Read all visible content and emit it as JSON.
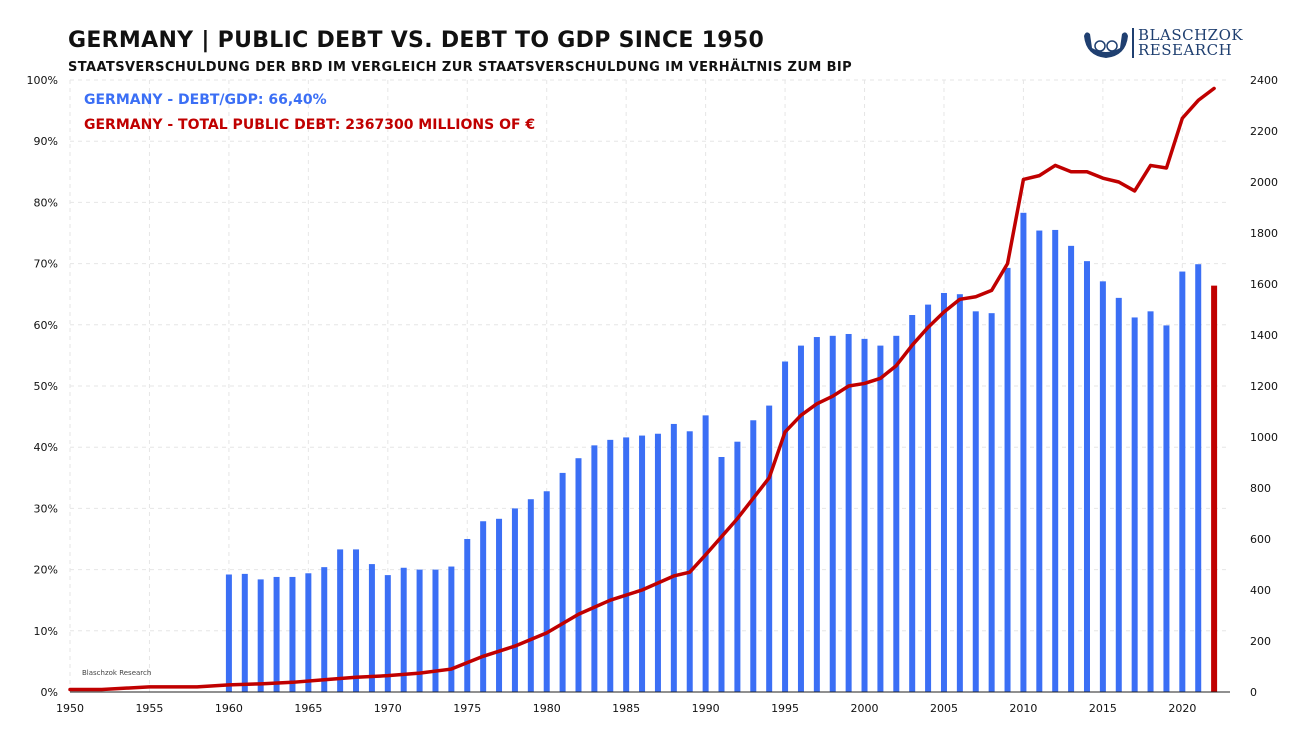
{
  "header": {
    "title": "GERMANY  |  PUBLIC DEBT VS. DEBT TO GDP SINCE 1950",
    "subtitle": "STAATSVERSCHULDUNG DER BRD IM VERGLEICH ZUR STAATSVERSCHULDUNG IM VERHÄLTNIS ZUM BIP"
  },
  "logo": {
    "line1": "BLASCHZOK",
    "line2": "RESEARCH"
  },
  "watermark": "Blaschzok  Research",
  "colors": {
    "bar": "#3b6ff5",
    "line": "#c00000",
    "last_bar": "#c00000",
    "grid": "#e6e6e6"
  },
  "chart_data": {
    "type": "bar",
    "legend": [
      "GERMANY - DEBT/GDP: 66,40%",
      "GERMANY - TOTAL  PUBLIC  DEBT: 2367300 MILLIONS  OF  €"
    ],
    "x_ticks": [
      1950,
      1955,
      1960,
      1965,
      1970,
      1975,
      1980,
      1985,
      1990,
      1995,
      2000,
      2005,
      2010,
      2015,
      2020
    ],
    "y_left_ticks": [
      "0%",
      "10%",
      "20%",
      "30%",
      "40%",
      "50%",
      "60%",
      "70%",
      "80%",
      "90%",
      "100%"
    ],
    "y_right_ticks": [
      "0",
      "200",
      "400",
      "600",
      "800",
      "1000",
      "1200",
      "1400",
      "1600",
      "1800",
      "2000",
      "2200",
      "2400"
    ],
    "ylim_left": [
      0,
      100
    ],
    "ylim_right": [
      0,
      2400
    ],
    "xlim": [
      1950,
      2023
    ],
    "grid": true,
    "series": [
      {
        "name": "GERMANY - DEBT/GDP",
        "axis": "left",
        "kind": "bar",
        "x": [
          1960,
          1961,
          1962,
          1963,
          1964,
          1965,
          1966,
          1967,
          1968,
          1969,
          1970,
          1971,
          1972,
          1973,
          1974,
          1975,
          1976,
          1977,
          1978,
          1979,
          1980,
          1981,
          1982,
          1983,
          1984,
          1985,
          1986,
          1987,
          1988,
          1989,
          1990,
          1991,
          1992,
          1993,
          1994,
          1995,
          1996,
          1997,
          1998,
          1999,
          2000,
          2001,
          2002,
          2003,
          2004,
          2005,
          2006,
          2007,
          2008,
          2009,
          2010,
          2011,
          2012,
          2013,
          2014,
          2015,
          2016,
          2017,
          2018,
          2019,
          2020,
          2021,
          2022
        ],
        "values": [
          19.2,
          19.3,
          18.4,
          18.8,
          18.8,
          19.4,
          20.4,
          23.3,
          23.3,
          20.9,
          19.1,
          20.3,
          20.0,
          20.0,
          20.5,
          25.0,
          27.9,
          28.3,
          30.0,
          31.5,
          32.8,
          35.8,
          38.2,
          40.3,
          41.2,
          41.6,
          41.9,
          42.2,
          43.8,
          42.6,
          45.2,
          38.4,
          40.9,
          44.4,
          46.8,
          54.0,
          56.6,
          58.0,
          58.2,
          58.5,
          57.7,
          56.6,
          58.2,
          61.6,
          63.3,
          65.2,
          65.0,
          62.2,
          61.9,
          69.3,
          78.3,
          75.4,
          75.5,
          72.9,
          70.4,
          67.1,
          64.4,
          61.2,
          62.2,
          59.9,
          68.7,
          69.9,
          66.4
        ]
      },
      {
        "name": "GERMANY - TOTAL PUBLIC DEBT",
        "axis": "right",
        "kind": "line",
        "x": [
          1950,
          1952,
          1955,
          1958,
          1960,
          1962,
          1964,
          1966,
          1968,
          1970,
          1972,
          1974,
          1976,
          1978,
          1980,
          1982,
          1984,
          1986,
          1988,
          1989,
          1990,
          1992,
          1993,
          1994,
          1995,
          1996,
          1997,
          1998,
          1999,
          2000,
          2001,
          2002,
          2003,
          2004,
          2005,
          2006,
          2007,
          2008,
          2009,
          2010,
          2011,
          2012,
          2013,
          2014,
          2015,
          2016,
          2017,
          2018,
          2019,
          2020,
          2021,
          2022
        ],
        "values": [
          10,
          10,
          20,
          20,
          28,
          32,
          38,
          48,
          58,
          64,
          74,
          90,
          140,
          180,
          232,
          305,
          360,
          400,
          455,
          470,
          538,
          680,
          760,
          840,
          1020,
          1085,
          1130,
          1160,
          1200,
          1210,
          1230,
          1280,
          1360,
          1430,
          1490,
          1540,
          1550,
          1575,
          1680,
          2010,
          2025,
          2065,
          2040,
          2040,
          2015,
          2000,
          1965,
          2065,
          2055,
          2250,
          2320,
          2367
        ]
      }
    ]
  }
}
